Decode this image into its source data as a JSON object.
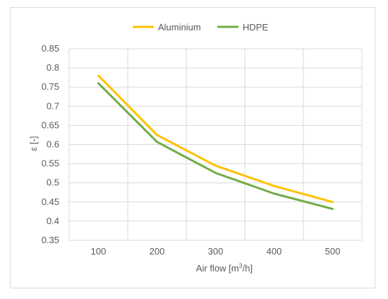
{
  "chart_data": {
    "type": "line",
    "x": [
      100,
      200,
      300,
      400,
      500
    ],
    "series": [
      {
        "name": "Aluminium",
        "color": "#FFC000",
        "values": [
          0.78,
          0.625,
          0.545,
          0.492,
          0.45
        ]
      },
      {
        "name": "HDPE",
        "color": "#70AD47",
        "values": [
          0.76,
          0.607,
          0.526,
          0.472,
          0.432
        ]
      }
    ],
    "xlabel_prefix": "Air flow [m",
    "xlabel_sup": "3",
    "xlabel_suffix": "/h]",
    "ylabel": "ε [-]",
    "ylim": [
      0.35,
      0.85
    ],
    "yticks": [
      "0.35",
      "0.4",
      "0.45",
      "0.5",
      "0.55",
      "0.6",
      "0.65",
      "0.7",
      "0.75",
      "0.8",
      "0.85"
    ],
    "xticks": [
      "100",
      "200",
      "300",
      "400",
      "500"
    ],
    "grid": true,
    "legend_position": "top-center"
  }
}
